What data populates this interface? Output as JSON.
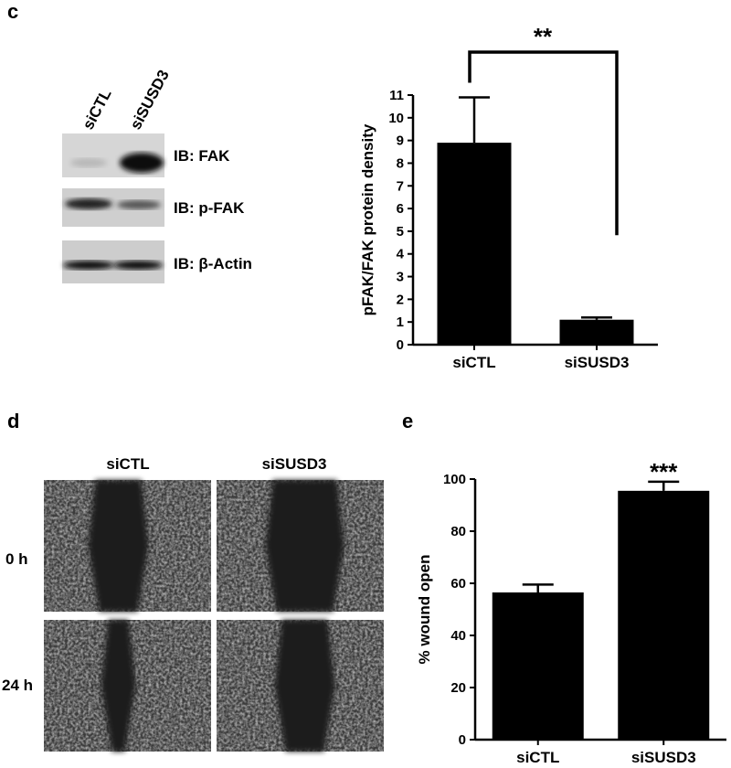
{
  "chart_data": [
    {
      "type": "bar",
      "y_label": "pFAK/FAK protein density",
      "categories": [
        "siCTL",
        "siSUSD3"
      ],
      "values": [
        8.9,
        1.1
      ],
      "errors": [
        2.0,
        0.1
      ],
      "color": "#000000",
      "ylim": [
        0,
        11
      ],
      "yticks": [
        0,
        1,
        2,
        3,
        4,
        5,
        6,
        7,
        8,
        9,
        10,
        11
      ],
      "annotation": "**"
    },
    {
      "type": "bar",
      "y_label": "% wound open",
      "categories": [
        "siCTL",
        "siSUSD3"
      ],
      "values": [
        56.5,
        95.5
      ],
      "errors": [
        3,
        3.5
      ],
      "color": "#000000",
      "ylim": [
        0,
        100
      ],
      "yticks": [
        0,
        20,
        40,
        60,
        80,
        100
      ],
      "annotation": "***"
    }
  ],
  "panels": {
    "c": "c",
    "d": "d",
    "e": "e"
  },
  "blot": {
    "lanes": [
      "siCTL",
      "siSUSD3"
    ],
    "rows": [
      "IB: FAK",
      "IB: p-FAK",
      "IB: β-Actin"
    ]
  },
  "wound": {
    "columns": [
      "siCTL",
      "siSUSD3"
    ],
    "rows": [
      "0 h",
      "24 h"
    ]
  }
}
